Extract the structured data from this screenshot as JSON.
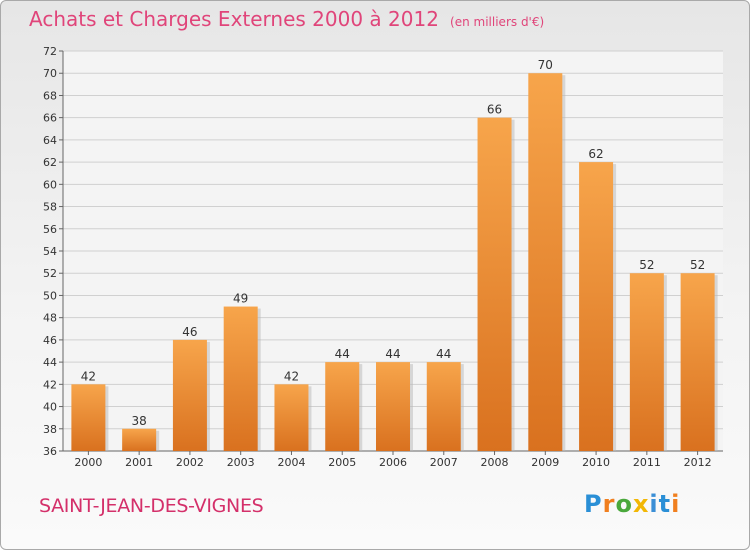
{
  "header": {
    "title": "Achats et Charges Externes 2000 à 2012",
    "unit": "(en milliers d'€)"
  },
  "footer": {
    "commune": "SAINT-JEAN-DES-VIGNES",
    "brand": "Proxiti"
  },
  "colors": {
    "bar_top": "#f7a54b",
    "bar_bottom": "#d9711f",
    "title": "#e0457a",
    "grid": "#d0d0d0"
  },
  "chart_data": {
    "type": "bar",
    "categories": [
      "2000",
      "2001",
      "2002",
      "2003",
      "2004",
      "2005",
      "2006",
      "2007",
      "2008",
      "2009",
      "2010",
      "2011",
      "2012"
    ],
    "values": [
      42,
      38,
      46,
      49,
      42,
      44,
      44,
      44,
      66,
      70,
      62,
      52,
      52
    ],
    "ylim": [
      36,
      72
    ],
    "yticks": [
      36,
      38,
      40,
      42,
      44,
      46,
      48,
      50,
      52,
      54,
      56,
      58,
      60,
      62,
      64,
      66,
      68,
      70,
      72
    ],
    "grid": true,
    "data_labels": true
  }
}
